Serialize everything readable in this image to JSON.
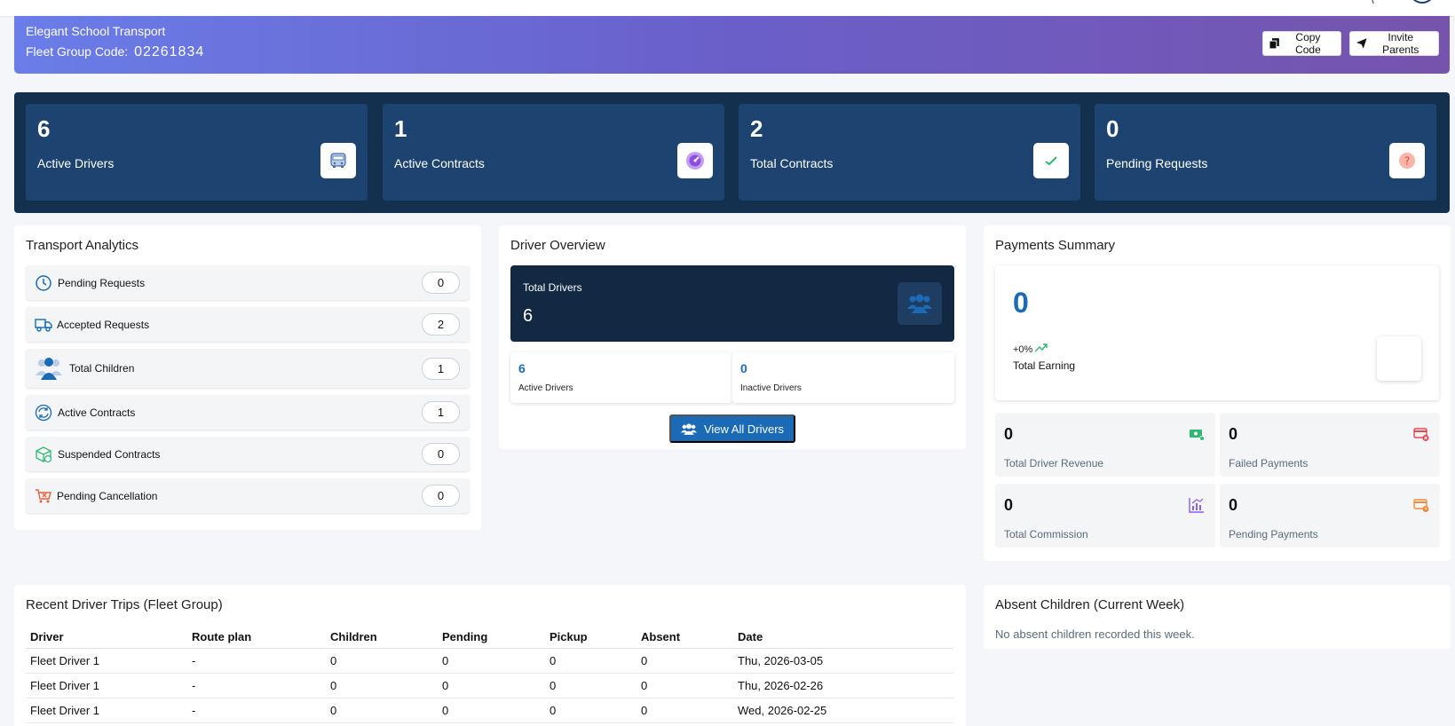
{
  "banner": {
    "school_name": "Elegant School Transport",
    "fleet_code_label": "Fleet Group Code:",
    "fleet_code": "02261834",
    "copy_code_label": "Copy Code",
    "invite_parents_label": "Invite Parents"
  },
  "stats": [
    {
      "value": "6",
      "label": "Active Drivers",
      "icon": "bus-icon"
    },
    {
      "value": "1",
      "label": "Active Contracts",
      "icon": "speedometer-icon"
    },
    {
      "value": "2",
      "label": "Total Contracts",
      "icon": "checkmark-icon"
    },
    {
      "value": "0",
      "label": "Pending Requests",
      "icon": "question-icon"
    }
  ],
  "analytics": {
    "title": "Transport Analytics",
    "items": [
      {
        "label": "Pending Requests",
        "value": "0",
        "icon": "clock-icon"
      },
      {
        "label": "Accepted Requests",
        "value": "2",
        "icon": "truck-icon"
      },
      {
        "label": "Total Children",
        "value": "1",
        "icon": "users-icon"
      },
      {
        "label": "Active Contracts",
        "value": "1",
        "icon": "refresh-icon"
      },
      {
        "label": "Suspended Contracts",
        "value": "0",
        "icon": "box-icon"
      },
      {
        "label": "Pending Cancellation",
        "value": "0",
        "icon": "cart-cancel-icon"
      }
    ]
  },
  "driver_overview": {
    "title": "Driver Overview",
    "total_label": "Total Drivers",
    "total_value": "6",
    "active_value": "6",
    "active_label": "Active Drivers",
    "inactive_value": "0",
    "inactive_label": "Inactive Drivers",
    "view_all_label": "View All Drivers"
  },
  "payments": {
    "title": "Payments Summary",
    "total_earning_value": "0",
    "change": "+0%",
    "total_earning_label": "Total Earning",
    "items": [
      {
        "value": "0",
        "label": "Total Driver Revenue",
        "icon": "money-icon",
        "color": "#2eb872"
      },
      {
        "value": "0",
        "label": "Failed Payments",
        "icon": "card-fail-icon",
        "color": "#e8454d"
      },
      {
        "value": "0",
        "label": "Total Commission",
        "icon": "chart-icon",
        "color": "#8b5cf6"
      },
      {
        "value": "0",
        "label": "Pending Payments",
        "icon": "card-pending-icon",
        "color": "#f08a3c"
      }
    ]
  },
  "trips": {
    "title": "Recent Driver Trips (Fleet Group)",
    "columns": [
      "Driver",
      "Route plan",
      "Children",
      "Pending",
      "Pickup",
      "Absent",
      "Date"
    ],
    "rows": [
      [
        "Fleet Driver 1",
        "-",
        "0",
        "0",
        "0",
        "0",
        "Thu, 2026-03-05"
      ],
      [
        "Fleet Driver 1",
        "-",
        "0",
        "0",
        "0",
        "0",
        "Thu, 2026-02-26"
      ],
      [
        "Fleet Driver 1",
        "-",
        "0",
        "0",
        "0",
        "0",
        "Wed, 2026-02-25"
      ]
    ]
  },
  "absent": {
    "title": "Absent Children (Current Week)",
    "empty_message": "No absent children recorded this week."
  },
  "colors": {
    "accent": "#1a6ab5",
    "stats_bg": "#13304f",
    "stat_card": "#1d4370"
  }
}
